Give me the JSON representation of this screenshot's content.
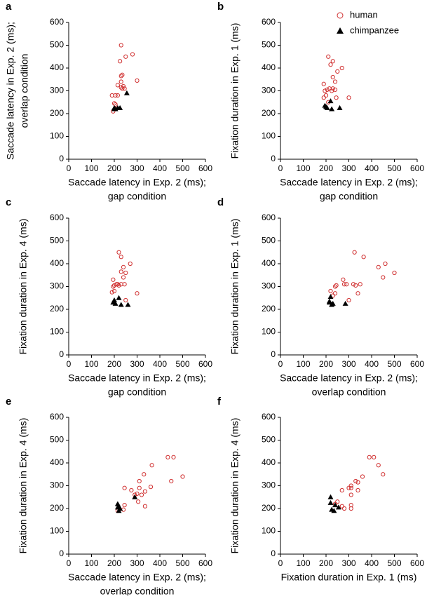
{
  "chart_data": [
    {
      "type": "scatter",
      "panel": "a",
      "x_label": [
        "Saccade latency in Exp. 2 (ms);",
        "gap condition"
      ],
      "y_label": [
        "Saccade latency in Exp. 2 (ms);",
        "overlap condition"
      ],
      "xlim": [
        0,
        600
      ],
      "ylim": [
        0,
        600
      ],
      "xticks": [
        0,
        100,
        200,
        300,
        400,
        500,
        600
      ],
      "yticks": [
        0,
        100,
        200,
        300,
        400,
        500,
        600
      ],
      "series": [
        {
          "color": "#d03030",
          "marker": "circle",
          "x": [
            230,
            280,
            250,
            225,
            205,
            235,
            230,
            215,
            230,
            240,
            235,
            245,
            300,
            215,
            200,
            205,
            195,
            230,
            190
          ],
          "y": [
            500,
            460,
            450,
            430,
            280,
            370,
            365,
            325,
            340,
            320,
            310,
            310,
            345,
            280,
            245,
            240,
            210,
            315,
            280
          ]
        },
        {
          "color": "#000000",
          "marker": "triangle",
          "x": [
            200,
            205,
            215,
            225,
            255,
            200
          ],
          "y": [
            225,
            220,
            225,
            225,
            290,
            220
          ]
        }
      ]
    },
    {
      "type": "scatter",
      "panel": "b",
      "x_label": [
        "Saccade latency in Exp. 2 (ms);",
        "gap condition"
      ],
      "y_label": [
        "Fixation duration in Exp. 1 (ms)"
      ],
      "xlim": [
        0,
        600
      ],
      "ylim": [
        0,
        600
      ],
      "xticks": [
        0,
        100,
        200,
        300,
        400,
        500,
        600
      ],
      "yticks": [
        0,
        100,
        200,
        300,
        400,
        500,
        600
      ],
      "legend": "upper right",
      "series": [
        {
          "name": "human",
          "color": "#d03030",
          "marker": "circle",
          "x": [
            210,
            230,
            220,
            270,
            250,
            230,
            190,
            240,
            215,
            205,
            240,
            230,
            195,
            225,
            200,
            190,
            245,
            300,
            210
          ],
          "y": [
            450,
            430,
            415,
            400,
            385,
            360,
            330,
            340,
            310,
            305,
            305,
            310,
            300,
            300,
            280,
            270,
            270,
            270,
            250
          ]
        },
        {
          "name": "chimpanzee",
          "color": "#000000",
          "marker": "triangle",
          "x": [
            195,
            205,
            220,
            225,
            260,
            200
          ],
          "y": [
            235,
            225,
            255,
            220,
            225,
            230
          ]
        }
      ]
    },
    {
      "type": "scatter",
      "panel": "c",
      "x_label": [
        "Saccade latency in Exp. 2 (ms);",
        "gap condition"
      ],
      "y_label": [
        "Fixation duration in Exp. 4 (ms)"
      ],
      "xlim": [
        0,
        600
      ],
      "ylim": [
        0,
        600
      ],
      "xticks": [
        0,
        100,
        200,
        300,
        400,
        500,
        600
      ],
      "yticks": [
        0,
        100,
        200,
        300,
        400,
        500,
        600
      ],
      "series": [
        {
          "color": "#d03030",
          "marker": "circle",
          "x": [
            220,
            230,
            270,
            240,
            250,
            230,
            195,
            240,
            210,
            200,
            245,
            230,
            195,
            220,
            200,
            190,
            250,
            300,
            215
          ],
          "y": [
            450,
            430,
            400,
            385,
            360,
            365,
            330,
            340,
            310,
            305,
            310,
            310,
            300,
            305,
            280,
            275,
            240,
            270,
            310
          ]
        },
        {
          "color": "#000000",
          "marker": "triangle",
          "x": [
            200,
            205,
            220,
            230,
            260,
            195
          ],
          "y": [
            240,
            225,
            250,
            220,
            220,
            230
          ]
        }
      ]
    },
    {
      "type": "scatter",
      "panel": "d",
      "x_label": [
        "Saccade latency in Exp. 2 (ms);",
        "overlap condition"
      ],
      "y_label": [
        "Fixation duration in Exp. 1 (ms)"
      ],
      "xlim": [
        0,
        600
      ],
      "ylim": [
        0,
        600
      ],
      "xticks": [
        0,
        100,
        200,
        300,
        400,
        500,
        600
      ],
      "yticks": [
        0,
        100,
        200,
        300,
        400,
        500,
        600
      ],
      "series": [
        {
          "color": "#d03030",
          "marker": "circle",
          "x": [
            325,
            365,
            460,
            430,
            500,
            450,
            275,
            350,
            320,
            330,
            245,
            240,
            290,
            340,
            300,
            280,
            220,
            240,
            230
          ],
          "y": [
            450,
            430,
            400,
            385,
            360,
            340,
            330,
            310,
            310,
            305,
            305,
            300,
            310,
            270,
            240,
            310,
            280,
            270,
            260
          ]
        },
        {
          "color": "#000000",
          "marker": "triangle",
          "x": [
            215,
            220,
            225,
            230,
            285,
            215
          ],
          "y": [
            235,
            255,
            220,
            225,
            225,
            230
          ]
        }
      ]
    },
    {
      "type": "scatter",
      "panel": "e",
      "x_label": [
        "Saccade latency in Exp. 2 (ms);",
        "overlap condition"
      ],
      "y_label": [
        "Fixation duration in Exp. 4 (ms)"
      ],
      "xlim": [
        0,
        600
      ],
      "ylim": [
        0,
        600
      ],
      "xticks": [
        0,
        100,
        200,
        300,
        400,
        500,
        600
      ],
      "yticks": [
        0,
        100,
        200,
        300,
        400,
        500,
        600
      ],
      "series": [
        {
          "color": "#d03030",
          "marker": "circle",
          "x": [
            435,
            460,
            365,
            500,
            450,
            330,
            310,
            275,
            245,
            310,
            360,
            335,
            300,
            290,
            320,
            305,
            335,
            245,
            215,
            240
          ],
          "y": [
            425,
            425,
            390,
            340,
            320,
            350,
            320,
            280,
            290,
            290,
            295,
            275,
            265,
            260,
            260,
            230,
            210,
            215,
            190,
            195
          ]
        },
        {
          "color": "#000000",
          "marker": "triangle",
          "x": [
            215,
            220,
            225,
            220,
            290,
            215
          ],
          "y": [
            220,
            210,
            200,
            190,
            250,
            205
          ]
        }
      ]
    },
    {
      "type": "scatter",
      "panel": "f",
      "x_label": [
        "Fixation duration in Exp. 1 (ms)"
      ],
      "y_label": [
        "Fixation duration in Exp. 4 (ms)"
      ],
      "xlim": [
        0,
        600
      ],
      "ylim": [
        0,
        600
      ],
      "xticks": [
        0,
        100,
        200,
        300,
        400,
        500,
        600
      ],
      "yticks": [
        0,
        100,
        200,
        300,
        400,
        500,
        600
      ],
      "series": [
        {
          "color": "#d03030",
          "marker": "circle",
          "x": [
            390,
            410,
            430,
            450,
            360,
            330,
            340,
            310,
            300,
            310,
            270,
            310,
            340,
            250,
            240,
            270,
            310,
            310,
            280
          ],
          "y": [
            425,
            425,
            390,
            350,
            340,
            320,
            315,
            300,
            290,
            290,
            280,
            260,
            280,
            230,
            220,
            210,
            215,
            200,
            200
          ]
        },
        {
          "color": "#000000",
          "marker": "triangle",
          "x": [
            220,
            220,
            240,
            225,
            255,
            235
          ],
          "y": [
            250,
            225,
            215,
            195,
            205,
            190
          ]
        }
      ]
    }
  ]
}
